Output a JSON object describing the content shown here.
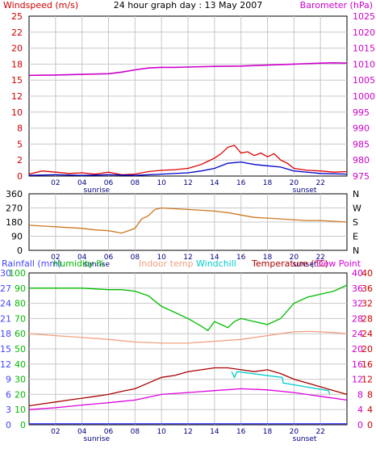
{
  "header": {
    "title": "24 hour graph day : 13 May 2007",
    "left_label": "Windspeed (m/s)",
    "right_label": "Barometer (hPa)"
  },
  "colors": {
    "windspeed": "#dd0000",
    "wind_avg": "#0000cc",
    "barometer": "#cc00cc",
    "wind_dir": "#cc7722",
    "rain": "#4444ff",
    "humidity": "#00bb00",
    "indoor": "#f0a080",
    "windchill": "#00cccc",
    "temperature": "#aa0000",
    "dewpoint": "#dd00dd",
    "axis_left": "#cc0000",
    "axis_right": "#cc00cc",
    "grid": "#c8c8c8"
  },
  "shared_x": {
    "tick_labels": [
      "02",
      "04",
      "06",
      "08",
      "10",
      "12",
      "14",
      "16",
      "18",
      "20",
      "22"
    ],
    "sunrise_label": "sunrise",
    "sunset_label": "sunset"
  },
  "chart_data": [
    {
      "type": "line",
      "title": "24 hour graph day : 13 May 2007",
      "ylabel": "Windspeed (m/s)",
      "y2label": "Barometer (hPa)",
      "ylim": [
        0,
        25
      ],
      "y2lim": [
        975,
        1025
      ],
      "y_ticks": [
        "25",
        "22",
        "20",
        "18",
        "15",
        "12",
        "10",
        "8",
        "5",
        "2",
        "0"
      ],
      "y2_ticks": [
        "1025",
        "1020",
        "1015",
        "1010",
        "1005",
        "1000",
        "995",
        "990",
        "985",
        "980",
        "975"
      ],
      "x_range_hours": [
        0,
        24
      ],
      "series": [
        {
          "key": "barometer",
          "x": [
            0,
            2,
            4,
            6,
            7,
            8,
            9,
            10,
            11,
            12,
            14,
            16,
            18,
            20,
            22,
            23,
            24
          ],
          "values": [
            1006.5,
            1006.6,
            1006.8,
            1007.0,
            1007.5,
            1008.2,
            1008.8,
            1009.0,
            1009.0,
            1009.1,
            1009.3,
            1009.4,
            1009.7,
            1010.0,
            1010.3,
            1010.4,
            1010.3
          ]
        },
        {
          "key": "windspeed",
          "x": [
            0,
            1,
            2,
            3,
            4,
            5,
            6,
            7,
            8,
            9,
            10,
            11,
            12,
            13,
            14,
            14.5,
            15,
            15.5,
            16,
            16.5,
            17,
            17.5,
            18,
            18.5,
            19,
            19.5,
            20,
            21,
            22,
            23,
            24
          ],
          "values": [
            0.3,
            0.8,
            0.6,
            0.4,
            0.5,
            0.3,
            0.6,
            0.2,
            0.3,
            0.7,
            0.9,
            1.0,
            1.2,
            1.8,
            2.8,
            3.5,
            4.5,
            4.8,
            3.6,
            3.8,
            3.2,
            3.6,
            3.0,
            3.5,
            2.5,
            2.0,
            1.2,
            0.9,
            0.8,
            0.6,
            0.7
          ]
        },
        {
          "key": "wind_avg",
          "x": [
            0,
            2,
            4,
            6,
            8,
            10,
            12,
            13,
            14,
            15,
            16,
            17,
            18,
            19,
            20,
            22,
            24
          ],
          "values": [
            0.1,
            0.2,
            0.1,
            0.2,
            0.1,
            0.3,
            0.5,
            0.8,
            1.2,
            2.0,
            2.2,
            1.8,
            1.6,
            1.4,
            0.8,
            0.4,
            0.3
          ]
        }
      ]
    },
    {
      "type": "line",
      "ylim": [
        0,
        360
      ],
      "y_ticks": [
        "360",
        "270",
        "180",
        "90",
        "0"
      ],
      "y2_ticks": [
        "N",
        "W",
        "S",
        "E",
        "N"
      ],
      "series": [
        {
          "key": "wind_dir",
          "x": [
            0,
            1,
            2,
            3,
            4,
            5,
            6,
            7,
            8,
            8.5,
            9,
            9.5,
            10,
            11,
            12,
            13,
            14,
            15,
            16,
            17,
            18,
            19,
            20,
            21,
            22,
            23,
            24
          ],
          "values": [
            160,
            155,
            150,
            145,
            140,
            130,
            125,
            110,
            140,
            200,
            220,
            260,
            270,
            265,
            260,
            255,
            250,
            240,
            225,
            210,
            205,
            200,
            195,
            190,
            190,
            185,
            180
          ]
        }
      ]
    },
    {
      "type": "line",
      "labels": [
        "Rainfall (mm)",
        "Humidity %",
        "Indoor temp",
        "Windchill",
        "Temperature (°C)",
        "Dew Point"
      ],
      "y_ticks_rain": [
        "30",
        "27",
        "24",
        "21",
        "18",
        "15",
        "12",
        "9",
        "6",
        "3",
        "0"
      ],
      "y_ticks_hum": [
        "100",
        "90",
        "80",
        "70",
        "60",
        "50",
        "40",
        "30",
        "20",
        "10",
        "0"
      ],
      "y_ticks_temp": [
        "40",
        "36",
        "32",
        "28",
        "24",
        "20",
        "16",
        "12",
        "8",
        "4",
        "0"
      ],
      "rain_lim": [
        0,
        30
      ],
      "hum_lim": [
        0,
        100
      ],
      "temp_lim": [
        0,
        40
      ],
      "series": [
        {
          "key": "humidity",
          "x": [
            0,
            2,
            4,
            6,
            7,
            8,
            9,
            10,
            11,
            12,
            13,
            13.5,
            14,
            14.5,
            15,
            15.5,
            16,
            17,
            18,
            19,
            20,
            21,
            22,
            23,
            24
          ],
          "values": [
            90,
            90,
            90,
            89,
            89,
            88,
            85,
            78,
            74,
            70,
            65,
            62,
            68,
            66,
            64,
            68,
            70,
            68,
            66,
            70,
            80,
            84,
            86,
            88,
            92
          ]
        },
        {
          "key": "indoor",
          "x": [
            0,
            2,
            4,
            6,
            8,
            10,
            12,
            14,
            16,
            18,
            19,
            20,
            21,
            22,
            23,
            24
          ],
          "values": [
            24,
            23.5,
            23,
            22.5,
            21.8,
            21.5,
            21.5,
            22,
            22.5,
            23.5,
            24,
            24.5,
            24.6,
            24.5,
            24.3,
            24
          ]
        },
        {
          "key": "temperature",
          "x": [
            0,
            1,
            2,
            3,
            4,
            5,
            6,
            7,
            8,
            9,
            10,
            11,
            12,
            13,
            14,
            15,
            16,
            17,
            18,
            19,
            20,
            21,
            22,
            23,
            24
          ],
          "values": [
            5,
            5.5,
            6,
            6.5,
            7,
            7.5,
            8,
            8.8,
            9.5,
            11,
            12.5,
            13,
            14,
            14.5,
            15,
            15,
            14.5,
            14,
            14.5,
            13.5,
            12,
            11,
            10,
            9,
            8
          ]
        },
        {
          "key": "dewpoint",
          "x": [
            0,
            2,
            4,
            6,
            8,
            10,
            12,
            14,
            16,
            18,
            20,
            22,
            24
          ],
          "values": [
            4,
            4.5,
            5.2,
            5.8,
            6.5,
            8,
            8.5,
            9,
            9.5,
            9.2,
            8.5,
            7.5,
            6.5
          ]
        },
        {
          "key": "windchill",
          "x": [
            15.3,
            15.5,
            15.7,
            19.1,
            19.2,
            22.6,
            22.7
          ],
          "values": [
            14,
            12.5,
            14,
            12.5,
            11,
            9,
            8
          ]
        },
        {
          "key": "rain",
          "x": [
            0,
            24
          ],
          "values": [
            0.2,
            0.2
          ]
        }
      ]
    }
  ]
}
